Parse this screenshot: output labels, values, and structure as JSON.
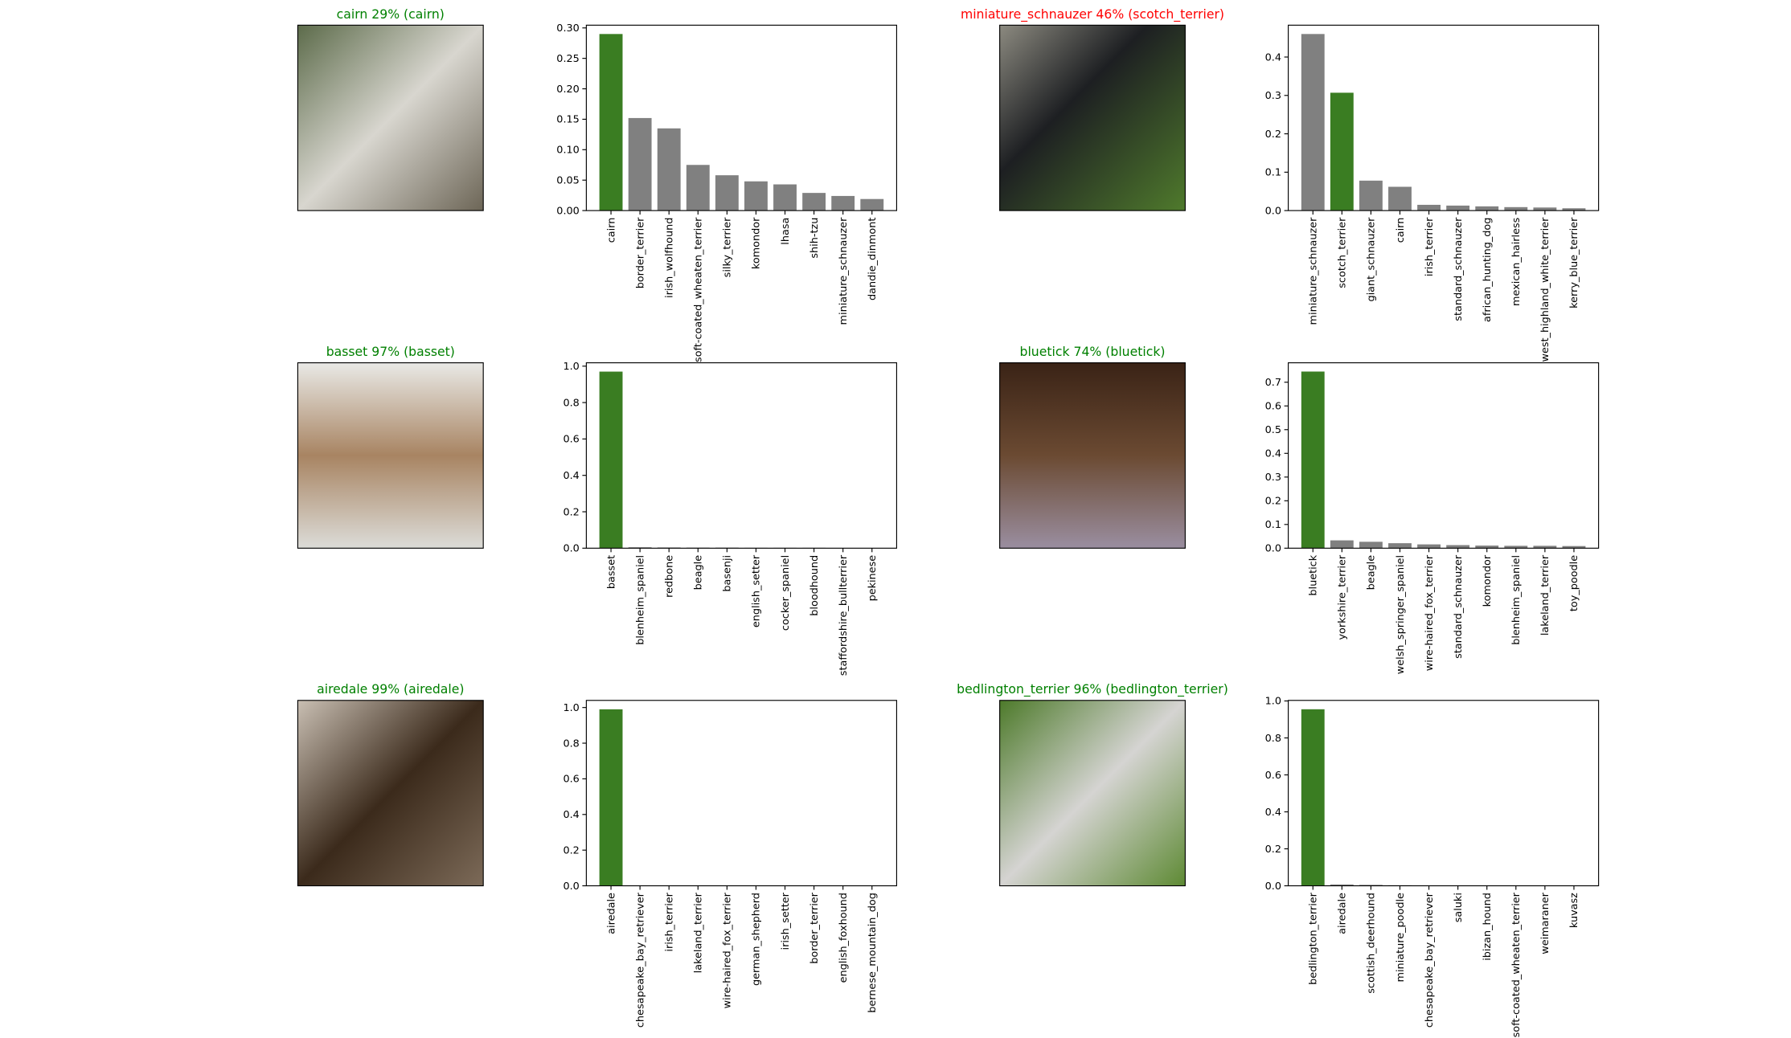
{
  "chart_data": [
    {
      "type": "image",
      "title": "cairn 29% (cairn)",
      "title_color": "green"
    },
    {
      "type": "bar",
      "categories": [
        "cairn",
        "border_terrier",
        "irish_wolfhound",
        "soft-coated_wheaten_terrier",
        "silky_terrier",
        "komondor",
        "lhasa",
        "shih-tzu",
        "miniature_schnauzer",
        "dandie_dinmont"
      ],
      "values": [
        0.29,
        0.152,
        0.135,
        0.075,
        0.058,
        0.048,
        0.043,
        0.029,
        0.024,
        0.019
      ],
      "colors": [
        "#3a7d22",
        "grey",
        "grey",
        "grey",
        "grey",
        "grey",
        "grey",
        "grey",
        "grey",
        "grey"
      ],
      "ylim": [
        0,
        0.3045
      ],
      "yticks": [
        {
          "value": 0,
          "label": "0.00"
        },
        {
          "value": 0.05,
          "label": "0.05"
        },
        {
          "value": 0.1,
          "label": "0.10"
        },
        {
          "value": 0.15,
          "label": "0.15"
        },
        {
          "value": 0.2,
          "label": "0.20"
        },
        {
          "value": 0.25,
          "label": "0.25"
        },
        {
          "value": 0.3,
          "label": "0.30"
        }
      ]
    },
    {
      "type": "image",
      "title": "miniature_schnauzer 46% (scotch_terrier)",
      "title_color": "red"
    },
    {
      "type": "bar",
      "categories": [
        "miniature_schnauzer",
        "scotch_terrier",
        "giant_schnauzer",
        "cairn",
        "irish_terrier",
        "standard_schnauzer",
        "african_hunting_dog",
        "mexican_hairless",
        "west_highland_white_terrier",
        "kerry_blue_terrier"
      ],
      "values": [
        0.46,
        0.307,
        0.078,
        0.062,
        0.015,
        0.013,
        0.011,
        0.009,
        0.008,
        0.006
      ],
      "colors": [
        "grey",
        "#3a7d22",
        "grey",
        "grey",
        "grey",
        "grey",
        "grey",
        "grey",
        "grey",
        "grey"
      ],
      "ylim": [
        0,
        0.483
      ],
      "yticks": [
        {
          "value": 0,
          "label": "0.0"
        },
        0.1,
        0.2,
        0.3,
        0.4
      ]
    },
    {
      "type": "image",
      "title": "basset 97% (basset)",
      "title_color": "green"
    },
    {
      "type": "bar",
      "categories": [
        "basset",
        "blenheim_spaniel",
        "redbone",
        "beagle",
        "basenji",
        "english_setter",
        "cocker_spaniel",
        "bloodhound",
        "staffordshire_bullterrier",
        "pekinese"
      ],
      "values": [
        0.97,
        0.005,
        0.004,
        0.003,
        0.003,
        0.002,
        0.002,
        0.002,
        0.001,
        0.001
      ],
      "colors": [
        "#3a7d22",
        "grey",
        "grey",
        "grey",
        "grey",
        "grey",
        "grey",
        "grey",
        "grey",
        "grey"
      ],
      "ylim": [
        0,
        1.0185
      ],
      "yticks": [
        {
          "value": 0,
          "label": "0.0"
        },
        0.2,
        0.4,
        0.6,
        0.8,
        {
          "value": 1,
          "label": "1.0"
        }
      ]
    },
    {
      "type": "image",
      "title": "bluetick 74% (bluetick)",
      "title_color": "green"
    },
    {
      "type": "bar",
      "categories": [
        "bluetick",
        "yorkshire_terrier",
        "beagle",
        "welsh_springer_spaniel",
        "wire-haired_fox_terrier",
        "standard_schnauzer",
        "komondor",
        "blenheim_spaniel",
        "lakeland_terrier",
        "toy_poodle"
      ],
      "values": [
        0.745,
        0.033,
        0.027,
        0.021,
        0.016,
        0.013,
        0.011,
        0.01,
        0.01,
        0.009
      ],
      "colors": [
        "#3a7d22",
        "grey",
        "grey",
        "grey",
        "grey",
        "grey",
        "grey",
        "grey",
        "grey",
        "grey"
      ],
      "ylim": [
        0,
        0.782
      ],
      "yticks": [
        {
          "value": 0,
          "label": "0.0"
        },
        0.1,
        0.2,
        0.3,
        0.4,
        0.5,
        0.6,
        0.7
      ]
    },
    {
      "type": "image",
      "title": "airedale 99% (airedale)",
      "title_color": "green"
    },
    {
      "type": "bar",
      "categories": [
        "airedale",
        "chesapeake_bay_retriever",
        "irish_terrier",
        "lakeland_terrier",
        "wire-haired_fox_terrier",
        "german_shepherd",
        "irish_setter",
        "border_terrier",
        "english_foxhound",
        "bernese_mountain_dog"
      ],
      "values": [
        0.99,
        0.002,
        0.001,
        0.001,
        0.001,
        0.001,
        0.001,
        0.001,
        0.001,
        0.001
      ],
      "colors": [
        "#3a7d22",
        "grey",
        "grey",
        "grey",
        "grey",
        "grey",
        "grey",
        "grey",
        "grey",
        "grey"
      ],
      "ylim": [
        0,
        1.04
      ],
      "yticks": [
        {
          "value": 0,
          "label": "0.0"
        },
        0.2,
        0.4,
        0.6,
        0.8,
        {
          "value": 1,
          "label": "1.0"
        }
      ]
    },
    {
      "type": "image",
      "title": "bedlington_terrier 96% (bedlington_terrier)",
      "title_color": "green"
    },
    {
      "type": "bar",
      "categories": [
        "bedlington_terrier",
        "airedale",
        "scottish_deerhound",
        "miniature_poodle",
        "chesapeake_bay_retriever",
        "saluki",
        "ibizan_hound",
        "soft-coated_wheaten_terrier",
        "weimaraner",
        "kuvasz"
      ],
      "values": [
        0.955,
        0.007,
        0.005,
        0.003,
        0.002,
        0.002,
        0.002,
        0.002,
        0.001,
        0.001
      ],
      "colors": [
        "#3a7d22",
        "grey",
        "grey",
        "grey",
        "grey",
        "grey",
        "grey",
        "grey",
        "grey",
        "grey"
      ],
      "ylim": [
        0,
        1.003
      ],
      "yticks": [
        {
          "value": 0,
          "label": "0.0"
        },
        0.2,
        0.4,
        0.6,
        0.8,
        {
          "value": 1,
          "label": "1.0"
        }
      ]
    }
  ]
}
